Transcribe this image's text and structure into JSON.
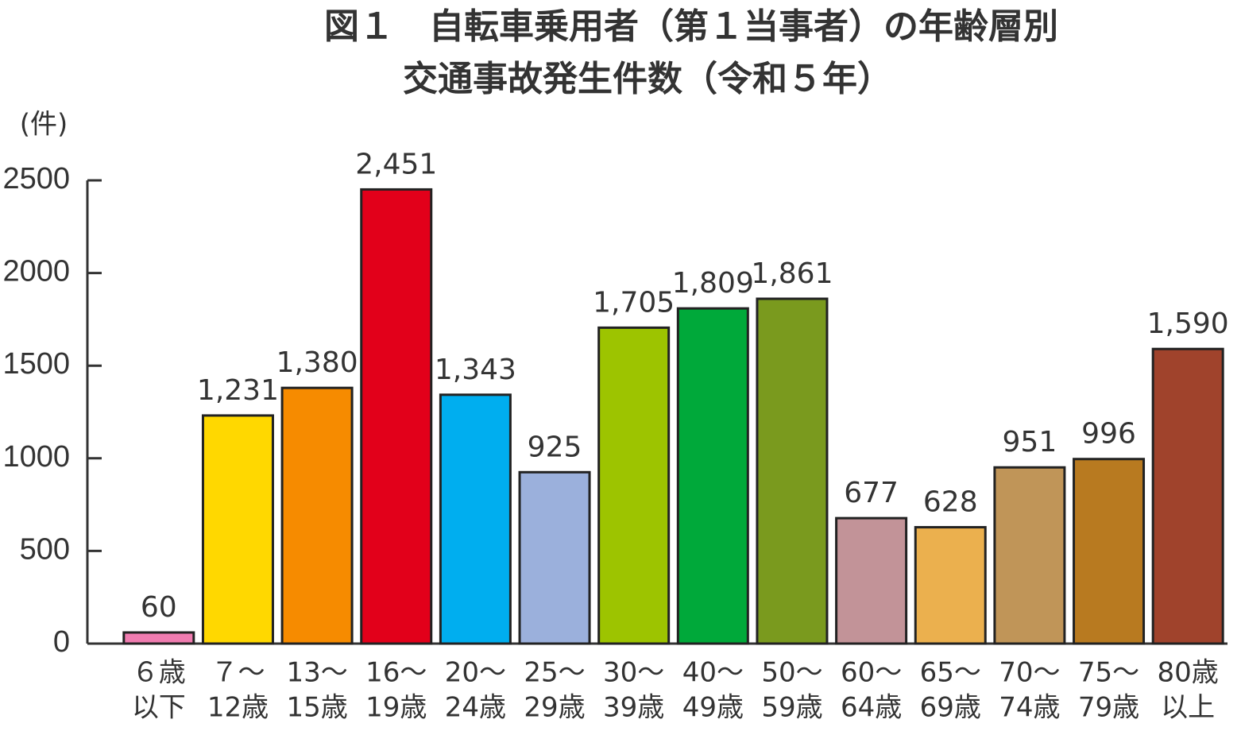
{
  "chart_data": {
    "type": "bar",
    "title": [
      "図１　自転車乗用者（第１当事者）の年齢層別",
      "交通事故発生件数（令和５年）"
    ],
    "y_label": "(件)",
    "categories": [
      [
        "６歳",
        "以下"
      ],
      [
        "７～",
        "12歳"
      ],
      [
        "13～",
        "15歳"
      ],
      [
        "16～",
        "19歳"
      ],
      [
        "20～",
        "24歳"
      ],
      [
        "25～",
        "29歳"
      ],
      [
        "30～",
        "39歳"
      ],
      [
        "40～",
        "49歳"
      ],
      [
        "50～",
        "59歳"
      ],
      [
        "60～",
        "64歳"
      ],
      [
        "65～",
        "69歳"
      ],
      [
        "70～",
        "74歳"
      ],
      [
        "75～",
        "79歳"
      ],
      [
        "80歳",
        "以上"
      ]
    ],
    "values": [
      60,
      1231,
      1380,
      2451,
      1343,
      925,
      1705,
      1809,
      1861,
      677,
      628,
      951,
      996,
      1590
    ],
    "value_labels": [
      "60",
      "1,231",
      "1,380",
      "2,451",
      "1,343",
      "925",
      "1,705",
      "1,809",
      "1,861",
      "677",
      "628",
      "951",
      "996",
      "1,590"
    ],
    "colors": [
      "#f07cb0",
      "#ffd800",
      "#f68b00",
      "#e2001a",
      "#00aeef",
      "#9bb0dc",
      "#9dc400",
      "#00a93a",
      "#7a9a1e",
      "#c29398",
      "#ebb04e",
      "#c09558",
      "#b87a20",
      "#a0432c"
    ],
    "ylim": [
      0,
      2500
    ],
    "yticks": [
      0,
      500,
      1000,
      1500,
      2000,
      2500
    ]
  }
}
